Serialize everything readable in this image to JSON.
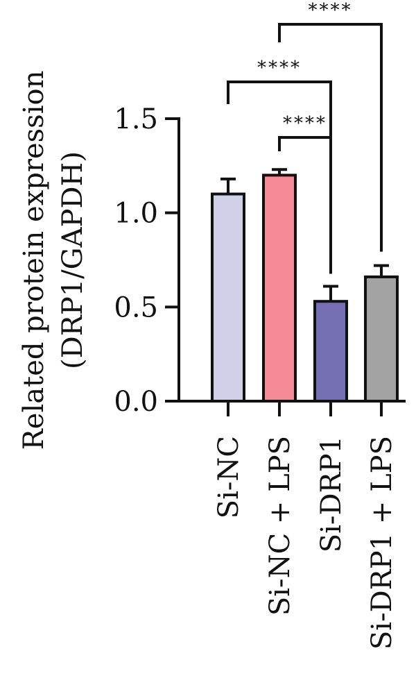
{
  "chart_data": {
    "type": "bar",
    "ylabel_line1": "Related protein expression",
    "ylabel_line2": "(DRP1/GAPDH)",
    "ylim": [
      0,
      1.5
    ],
    "yticks": [
      {
        "value": 0,
        "label": "0.0"
      },
      {
        "value": 0.5,
        "label": "0.5"
      },
      {
        "value": 1.0,
        "label": "1.0"
      },
      {
        "value": 1.5,
        "label": "1.5"
      }
    ],
    "categories": [
      "Si-NC",
      "Si-NC + LPS",
      "Si-DRP1",
      "Si-DRP1 + LPS"
    ],
    "values": [
      1.1,
      1.2,
      0.53,
      0.66
    ],
    "errors": [
      0.08,
      0.03,
      0.08,
      0.06
    ],
    "colors": [
      "#d0d0e8",
      "#f48b97",
      "#7570b3",
      "#a3a3a3"
    ],
    "significance": [
      {
        "from": 0,
        "to": 2,
        "label": "****"
      },
      {
        "from": 1,
        "to": 2,
        "label": "****"
      },
      {
        "from": 1,
        "to": 3,
        "label": "****"
      }
    ],
    "grid": false
  }
}
